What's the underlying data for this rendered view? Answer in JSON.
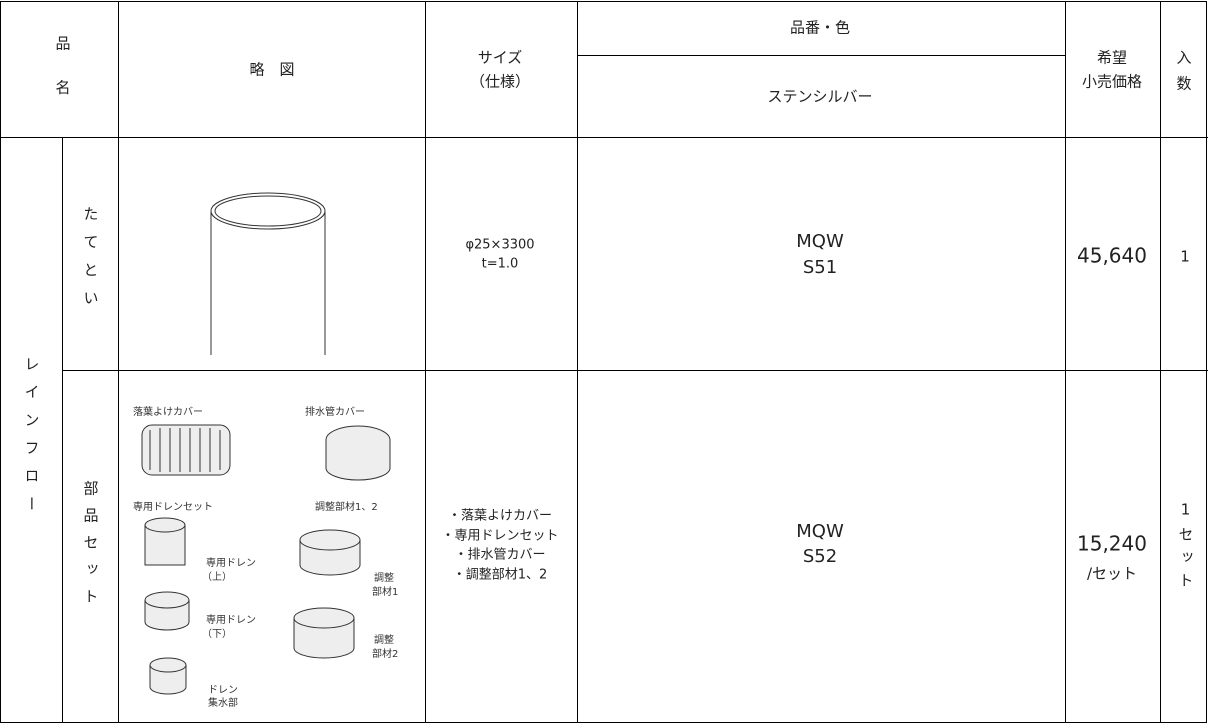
{
  "header": {
    "name": [
      "品",
      "名"
    ],
    "diagram": "略　図",
    "size": [
      "サイズ",
      "（仕様）"
    ],
    "product_color": "品番・色",
    "color_name": "ステンシルバー",
    "price": [
      "希望",
      "小売価格"
    ],
    "quantity": [
      "入",
      "数"
    ]
  },
  "group": "レインフロー",
  "rows": [
    {
      "name": "たてとい",
      "size": [
        "φ25×3300",
        "t=1.0"
      ],
      "code": [
        "MQW",
        "S51"
      ],
      "price": [
        "45,640"
      ],
      "quantity": "1"
    },
    {
      "name": "部品セット",
      "diagram_labels": [
        "落葉よけカバー",
        "排水管カバー",
        "専用ドレンセット",
        "調整部材1、2",
        "専用ドレン",
        "（上）",
        "専用ドレン",
        "（下）",
        "調整",
        "部材1",
        "調整",
        "部材2",
        "ドレン",
        "集水部"
      ],
      "size": [
        "・落葉よけカバー",
        "・専用ドレンセット",
        "・排水管カバー",
        "・調整部材1、2"
      ],
      "code": [
        "MQW",
        "S52"
      ],
      "price": [
        "15,240",
        "/セット"
      ],
      "quantity": "1セット"
    }
  ]
}
